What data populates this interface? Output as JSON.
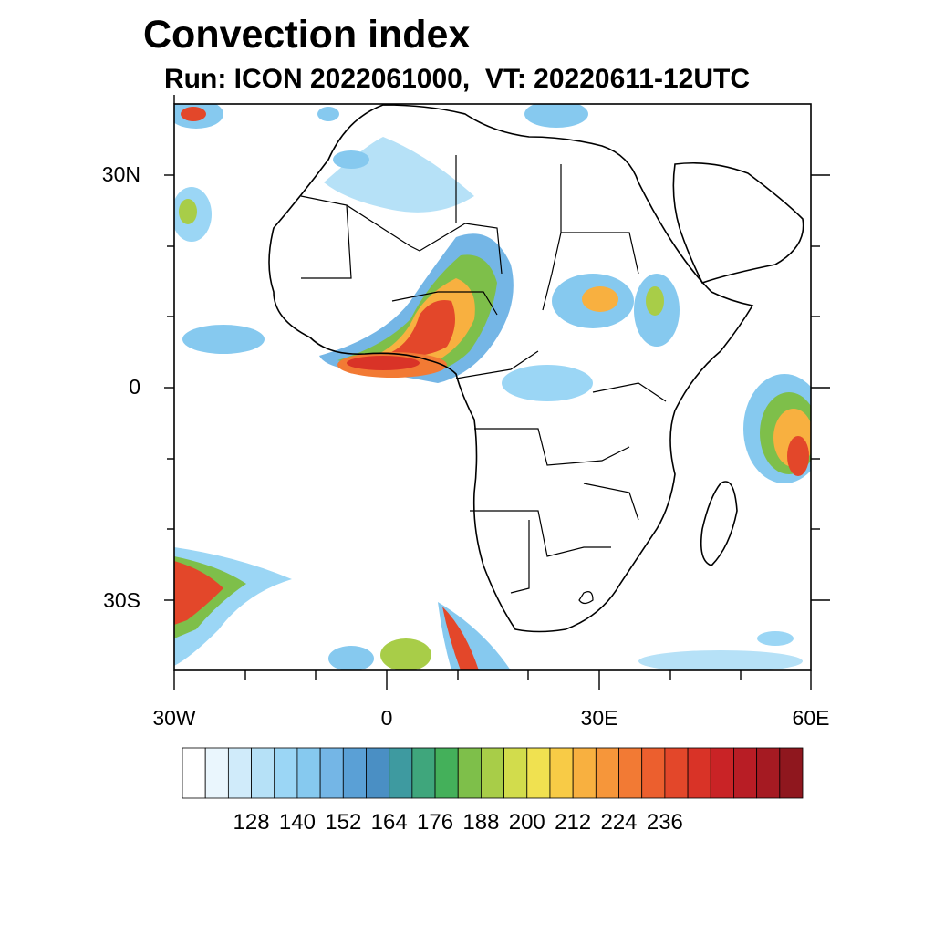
{
  "title": "Convection index",
  "subtitle": "Run: ICON 2022061000,  VT: 20220611-12UTC",
  "axes": {
    "y_ticks": [
      "30N",
      "0",
      "30S"
    ],
    "x_ticks": [
      "30W",
      "0",
      "30E",
      "60E"
    ]
  },
  "colorbar": {
    "labels": [
      "128",
      "140",
      "152",
      "164",
      "176",
      "188",
      "200",
      "212",
      "224",
      "236"
    ],
    "colors": [
      "#ffffff",
      "#eaf6fd",
      "#d0ebfa",
      "#b6e1f7",
      "#9bd6f5",
      "#86c9ef",
      "#74b6e6",
      "#5aa0d6",
      "#4a8fc4",
      "#3e9aa0",
      "#3fa67c",
      "#44b05a",
      "#7ebf4a",
      "#a8cd48",
      "#d2dc4c",
      "#f0e150",
      "#f8cb46",
      "#f8b040",
      "#f6963a",
      "#f27a34",
      "#ec5f2e",
      "#e3472a",
      "#d93327",
      "#c92326",
      "#b81d25",
      "#a51a22",
      "#8f171e"
    ]
  },
  "map": {
    "lon_range": [
      -30,
      60
    ],
    "lat_range": [
      -40,
      40
    ]
  }
}
